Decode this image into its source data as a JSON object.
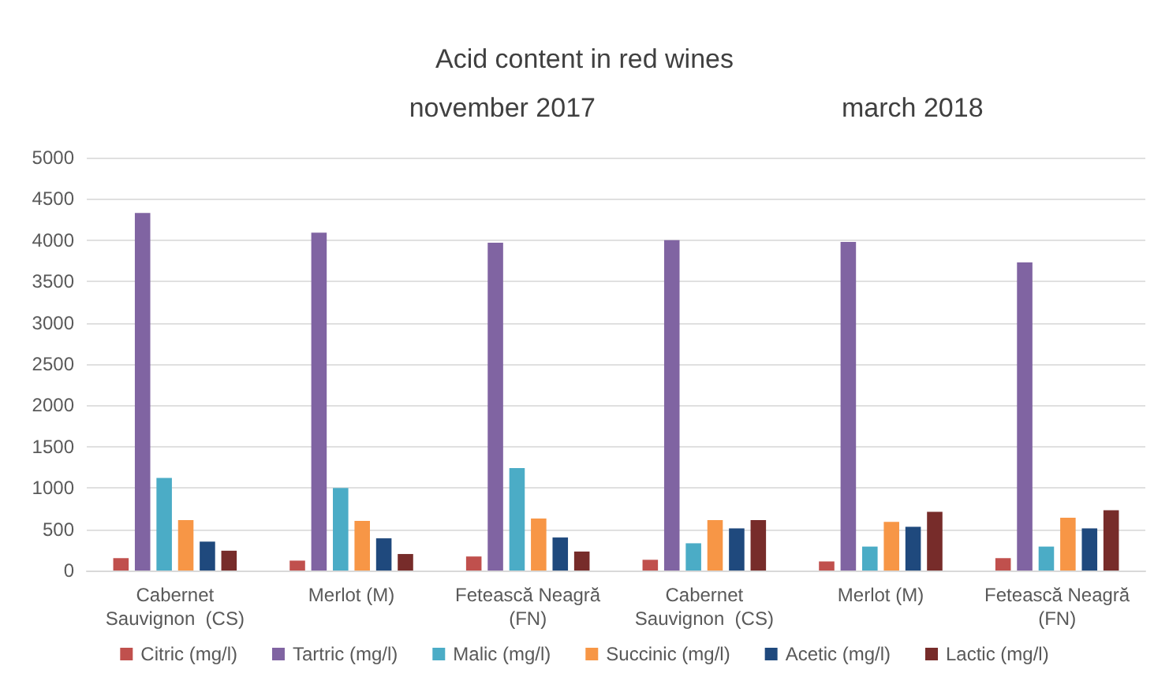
{
  "chart_data": {
    "type": "bar",
    "title": "Acid content in red wines",
    "annotations": [
      "november 2017",
      "march 2018"
    ],
    "categories": [
      "Cabernet\nSauvignon  (CS)",
      "Merlot (M)",
      "Fetească Neagră\n(FN)",
      "Cabernet\nSauvignon  (CS)",
      "Merlot (M)",
      "Fetească Neagră\n(FN)"
    ],
    "series": [
      {
        "name": "Citric (mg/l)",
        "color": "#c0504d",
        "values": [
          150,
          120,
          170,
          130,
          110,
          150
        ]
      },
      {
        "name": "Tartric (mg/l)",
        "color": "#8064a2",
        "values": [
          4330,
          4090,
          3970,
          4000,
          3980,
          3730
        ]
      },
      {
        "name": "Malic (mg/l)",
        "color": "#4bacc6",
        "values": [
          1120,
          1000,
          1240,
          330,
          290,
          290
        ]
      },
      {
        "name": "Succinic (mg/l)",
        "color": "#f79646",
        "values": [
          610,
          600,
          630,
          610,
          590,
          640
        ]
      },
      {
        "name": "Acetic (mg/l)",
        "color": "#1f497d",
        "values": [
          350,
          390,
          400,
          510,
          530,
          510
        ]
      },
      {
        "name": "Lactic (mg/l)",
        "color": "#772c2a",
        "values": [
          240,
          200,
          230,
          610,
          710,
          730
        ]
      }
    ],
    "ylim": [
      0,
      5000
    ],
    "yticks": [
      0,
      500,
      1000,
      1500,
      2000,
      2500,
      3000,
      3500,
      4000,
      4500,
      5000
    ],
    "grid": "y",
    "legend": "bottom"
  }
}
